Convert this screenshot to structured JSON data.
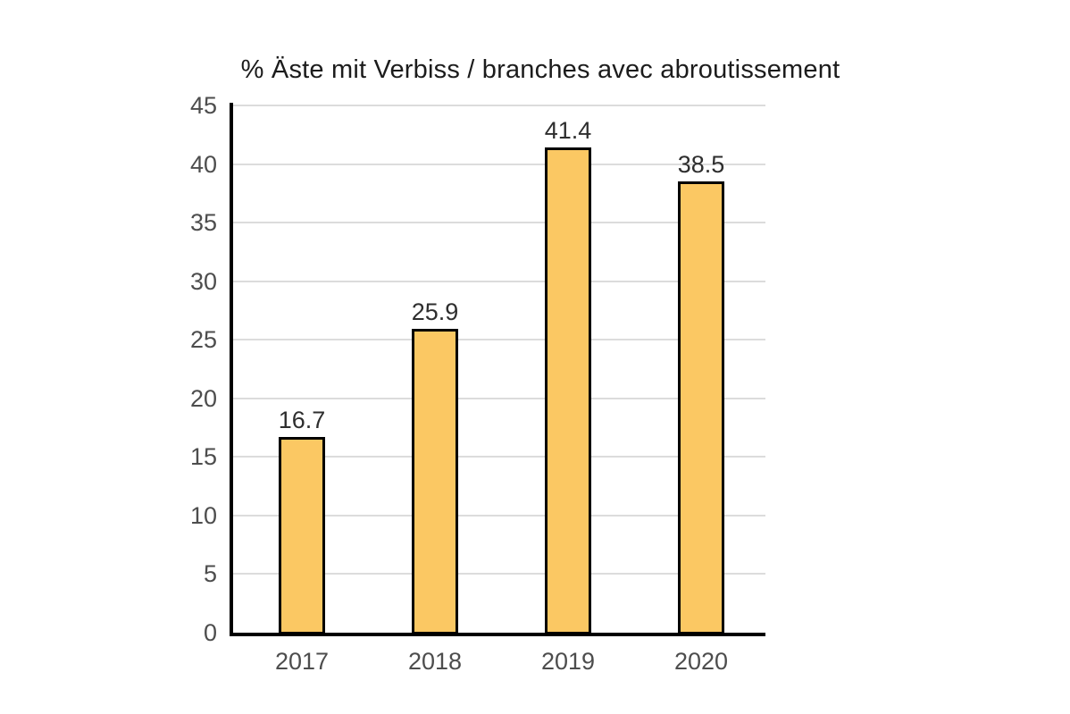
{
  "chart_data": {
    "type": "bar",
    "title": "% Äste mit Verbiss / branches avec abroutissement",
    "categories": [
      "2017",
      "2018",
      "2019",
      "2020"
    ],
    "values": [
      16.7,
      25.9,
      41.4,
      38.5
    ],
    "value_labels": [
      "16.7",
      "25.9",
      "41.4",
      "38.5"
    ],
    "xlabel": "",
    "ylabel": "",
    "ylim": [
      0,
      45
    ],
    "ytick_step": 5,
    "yticks": [
      0,
      5,
      10,
      15,
      20,
      25,
      30,
      35,
      40,
      45
    ],
    "grid": "horizontal",
    "legend": "none",
    "colors": {
      "background": "#FFFFFF",
      "bar_fill": "#FBC863",
      "bar_border": "#000000",
      "axis": "#000000",
      "gridline": "#DCDCDC",
      "tick_label": "#4D4D4D",
      "value_label": "#2E2E2E",
      "title": "#1C1C1C"
    }
  }
}
